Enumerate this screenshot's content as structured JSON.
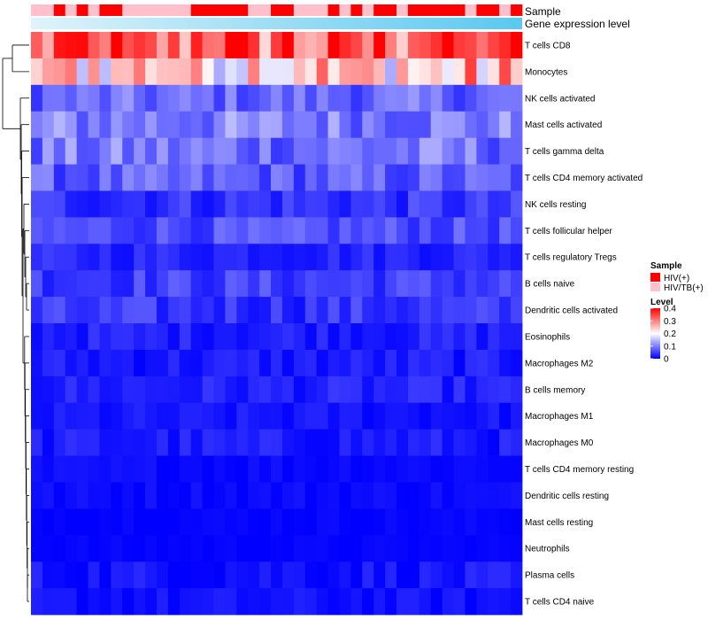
{
  "chart_data": {
    "type": "heatmap",
    "title": "",
    "annotation_labels": {
      "sample": "Sample",
      "gene_expression": "Gene expression level"
    },
    "rows": [
      "T cells CD8",
      "Monocytes",
      "NK cells activated",
      "Mast cells activated",
      "T cells gamma delta",
      "T cells CD4 memory activated",
      "NK cells resting",
      "T cells follicular helper",
      "T cells regulatory  Tregs",
      "B cells naive",
      "Dendritic cells activated",
      "Eosinophils",
      "Macrophages M2",
      "B cells memory",
      "Macrophages M1",
      "Macrophages M0",
      "T cells CD4 memory resting",
      "Dendritic cells resting",
      "Mast cells resting",
      "Neutrophils",
      "Plasma cells",
      "T cells CD4 naive"
    ],
    "n_columns": 43,
    "sample_annotation": [
      "HIV/TB(+)",
      "HIV/TB(+)",
      "HIV(+)",
      "HIV/TB(+)",
      "HIV(+)",
      "HIV/TB(+)",
      "HIV(+)",
      "HIV(+)",
      "HIV/TB(+)",
      "HIV/TB(+)",
      "HIV/TB(+)",
      "HIV/TB(+)",
      "HIV/TB(+)",
      "HIV/TB(+)",
      "HIV(+)",
      "HIV(+)",
      "HIV(+)",
      "HIV(+)",
      "HIV(+)",
      "HIV/TB(+)",
      "HIV/TB(+)",
      "HIV(+)",
      "HIV(+)",
      "HIV/TB(+)",
      "HIV/TB(+)",
      "HIV/TB(+)",
      "HIV(+)",
      "HIV/TB(+)",
      "HIV(+)",
      "HIV/TB(+)",
      "HIV(+)",
      "HIV(+)",
      "HIV/TB(+)",
      "HIV(+)",
      "HIV(+)",
      "HIV(+)",
      "HIV(+)",
      "HIV(+)",
      "HIV/TB(+)",
      "HIV(+)",
      "HIV(+)",
      "HIV/TB(+)",
      "HIV(+)"
    ],
    "row_means": [
      0.3,
      0.22,
      0.08,
      0.1,
      0.09,
      0.07,
      0.04,
      0.06,
      0.03,
      0.05,
      0.04,
      0.025,
      0.02,
      0.025,
      0.015,
      0.02,
      0.008,
      0.008,
      0.004,
      0.003,
      0.015,
      0.012
    ],
    "row_spread": [
      0.09,
      0.09,
      0.04,
      0.05,
      0.05,
      0.04,
      0.03,
      0.03,
      0.02,
      0.03,
      0.03,
      0.02,
      0.02,
      0.02,
      0.015,
      0.02,
      0.01,
      0.01,
      0.006,
      0.005,
      0.02,
      0.015
    ],
    "value_range": [
      0,
      0.4
    ],
    "dendrogram": "row-clustering"
  },
  "legend": {
    "sample_title": "Sample",
    "sample_items": [
      {
        "label": "HIV(+)",
        "color": "#ff0000"
      },
      {
        "label": "HIV/TB(+)",
        "color": "#ffc0cb"
      }
    ],
    "level_title": "Level",
    "level_ticks": [
      "0.4",
      "0.3",
      "0.2",
      "0.1",
      "0"
    ],
    "level_values": [
      0.4,
      0.3,
      0.2,
      0.1,
      0
    ]
  },
  "colors": {
    "low": "#0000ff",
    "mid": "#ffffff",
    "high": "#ff0000",
    "gene_expression_bar_start": "#dff3fb",
    "gene_expression_bar_end": "#5bc8ef"
  }
}
